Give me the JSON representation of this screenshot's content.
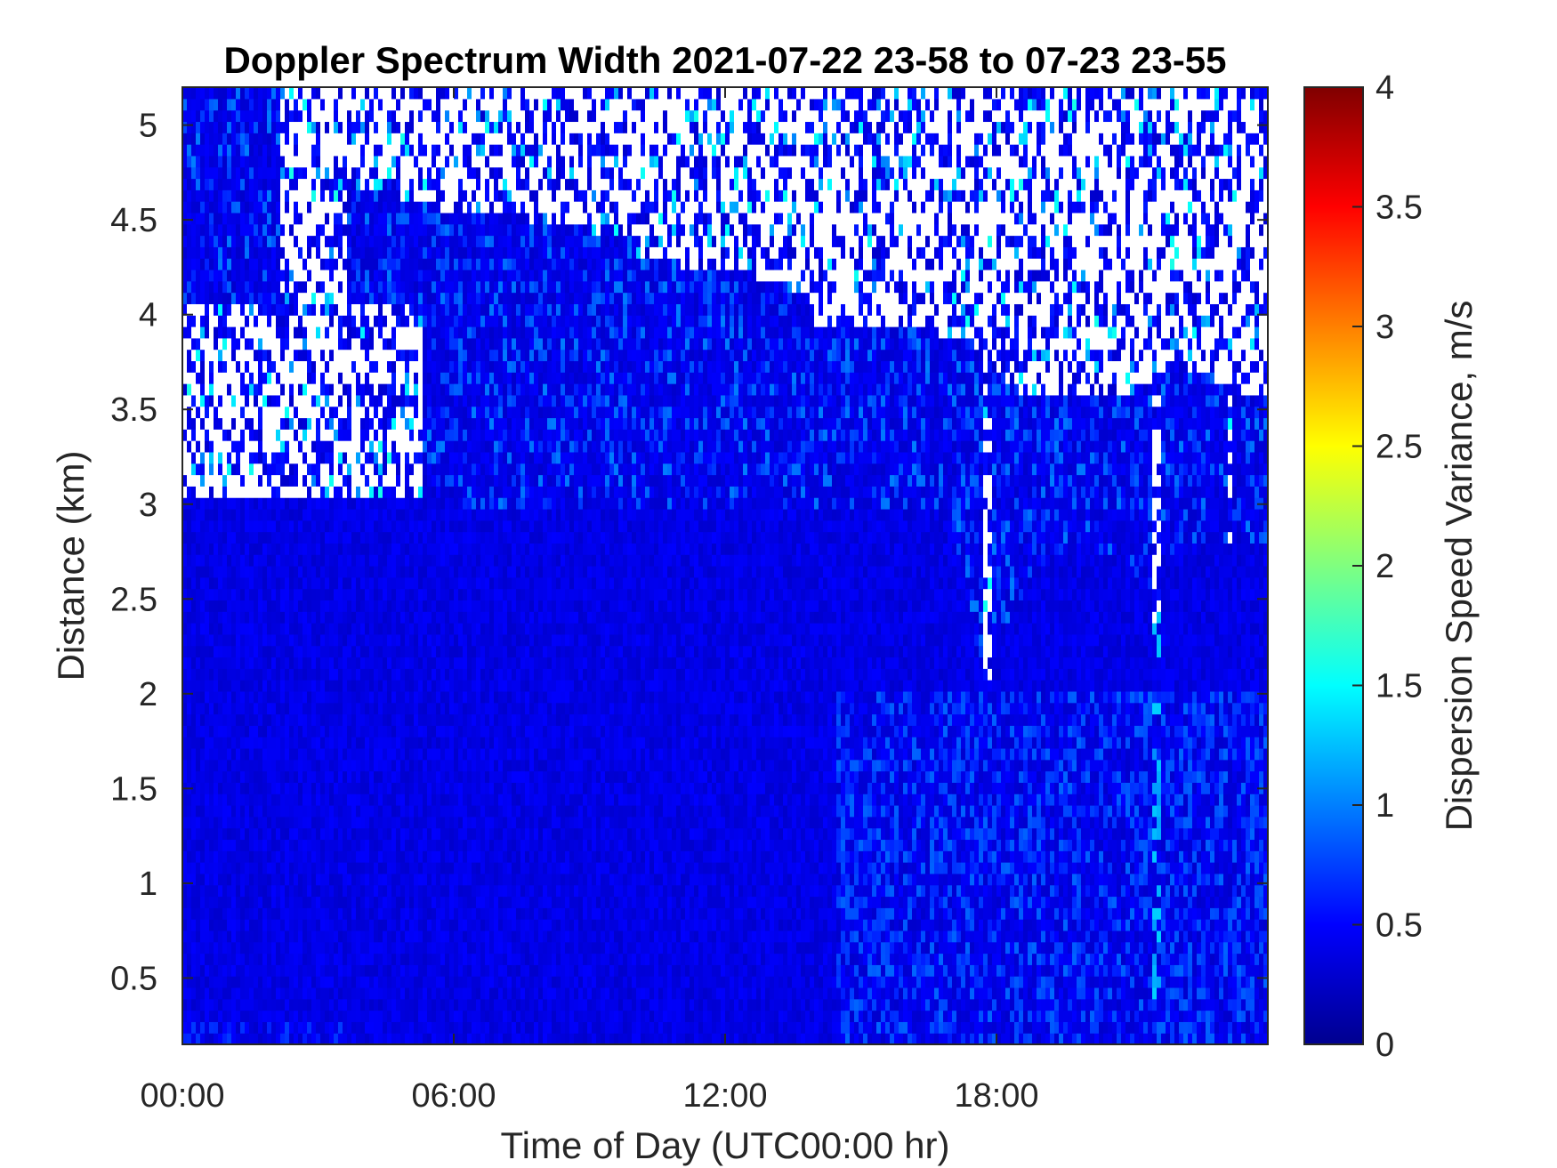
{
  "chart_data": {
    "type": "heatmap",
    "title": "Doppler Spectrum Width 2021-07-22 23-58 to 07-23 23-55",
    "xlabel": "Time of Day (UTC00:00 hr)",
    "ylabel": "Distance (km)",
    "colorbar_label": "Dispersion Speed Variance, m/s",
    "colormap": "jet",
    "xlim_hours": [
      0,
      24
    ],
    "ylim": [
      0.15,
      5.2
    ],
    "clim": [
      0,
      4
    ],
    "x_ticks": [
      {
        "value": 0,
        "label": "00:00"
      },
      {
        "value": 6,
        "label": "06:00"
      },
      {
        "value": 12,
        "label": "12:00"
      },
      {
        "value": 18,
        "label": "18:00"
      }
    ],
    "y_ticks": [
      {
        "value": 0.5,
        "label": "0.5"
      },
      {
        "value": 1,
        "label": "1"
      },
      {
        "value": 1.5,
        "label": "1.5"
      },
      {
        "value": 2,
        "label": "2"
      },
      {
        "value": 2.5,
        "label": "2.5"
      },
      {
        "value": 3,
        "label": "3"
      },
      {
        "value": 3.5,
        "label": "3.5"
      },
      {
        "value": 4,
        "label": "4"
      },
      {
        "value": 4.5,
        "label": "4.5"
      },
      {
        "value": 5,
        "label": "5"
      }
    ],
    "colorbar_ticks": [
      {
        "value": 0,
        "label": "0"
      },
      {
        "value": 0.5,
        "label": "0.5"
      },
      {
        "value": 1,
        "label": "1"
      },
      {
        "value": 1.5,
        "label": "1.5"
      },
      {
        "value": 2,
        "label": "2"
      },
      {
        "value": 2.5,
        "label": "2.5"
      },
      {
        "value": 3,
        "label": "3"
      },
      {
        "value": 3.5,
        "label": "3.5"
      },
      {
        "value": 4,
        "label": "4"
      }
    ],
    "typical_value": 0.4,
    "no_data_color": "#ffffff",
    "data_top_km": [
      {
        "t": 0.0,
        "top": 4.05
      },
      {
        "t": 1.0,
        "top": 3.9
      },
      {
        "t": 2.3,
        "top": 3.45
      },
      {
        "t": 2.6,
        "top": 2.9
      },
      {
        "t": 3.4,
        "top": 3.45
      },
      {
        "t": 4.5,
        "top": 3.3
      },
      {
        "t": 5.5,
        "top": 3.05
      },
      {
        "t": 7.0,
        "top": 2.95
      },
      {
        "t": 9.0,
        "top": 2.95
      },
      {
        "t": 11.0,
        "top": 2.95
      },
      {
        "t": 13.0,
        "top": 2.95
      },
      {
        "t": 15.0,
        "top": 2.95
      },
      {
        "t": 17.0,
        "top": 2.95
      },
      {
        "t": 17.6,
        "top": 2.2
      },
      {
        "t": 18.0,
        "top": 2.3
      },
      {
        "t": 19.0,
        "top": 2.7
      },
      {
        "t": 20.0,
        "top": 2.8
      },
      {
        "t": 21.4,
        "top": 2.5
      },
      {
        "t": 22.0,
        "top": 2.8
      },
      {
        "t": 24.0,
        "top": 2.8
      }
    ],
    "solid_top_km": [
      {
        "t": 0.0,
        "top": 5.2
      },
      {
        "t": 2.2,
        "top": 5.2
      },
      {
        "t": 2.4,
        "top": 4.0
      },
      {
        "t": 3.6,
        "top": 4.0
      },
      {
        "t": 3.7,
        "top": 4.7
      },
      {
        "t": 6.0,
        "top": 4.55
      },
      {
        "t": 8.0,
        "top": 4.5
      },
      {
        "t": 10.0,
        "top": 4.4
      },
      {
        "t": 11.0,
        "top": 4.25
      },
      {
        "t": 13.0,
        "top": 4.2
      },
      {
        "t": 14.0,
        "top": 4.05
      },
      {
        "t": 16.0,
        "top": 3.95
      },
      {
        "t": 17.5,
        "top": 3.85
      },
      {
        "t": 18.5,
        "top": 3.6
      },
      {
        "t": 20.0,
        "top": 3.55
      },
      {
        "t": 21.0,
        "top": 3.6
      },
      {
        "t": 22.0,
        "top": 3.75
      },
      {
        "t": 24.0,
        "top": 3.55
      }
    ],
    "gaps": [
      {
        "t0": 2.2,
        "t1": 3.6,
        "z0": 3.5,
        "z1": 5.2
      },
      {
        "t0": 0.0,
        "t1": 5.3,
        "z0": 3.05,
        "z1": 4.05
      },
      {
        "t0": 6.0,
        "t1": 7.0,
        "z0": 4.6,
        "z1": 5.2
      },
      {
        "t0": 10.0,
        "t1": 24.0,
        "z0": 4.3,
        "z1": 5.2
      },
      {
        "t0": 14.0,
        "t1": 24.0,
        "z0": 3.95,
        "z1": 4.3
      },
      {
        "t0": 17.7,
        "t1": 17.9,
        "z0": 2.1,
        "z1": 3.9
      },
      {
        "t0": 21.4,
        "t1": 21.6,
        "z0": 2.4,
        "z1": 3.8
      },
      {
        "t0": 23.1,
        "t1": 23.25,
        "z0": 2.8,
        "z1": 3.6
      }
    ],
    "high_variance_bands": [
      {
        "t0": 14.5,
        "t1": 24.0,
        "z0": 0.15,
        "z1": 2.0,
        "value": 0.75
      },
      {
        "t0": 21.45,
        "t1": 21.6,
        "z0": 0.15,
        "z1": 2.6,
        "value": 1.2
      },
      {
        "t0": 0.0,
        "t1": 3.5,
        "z0": 0.15,
        "z1": 0.3,
        "value": 0.6
      }
    ]
  }
}
